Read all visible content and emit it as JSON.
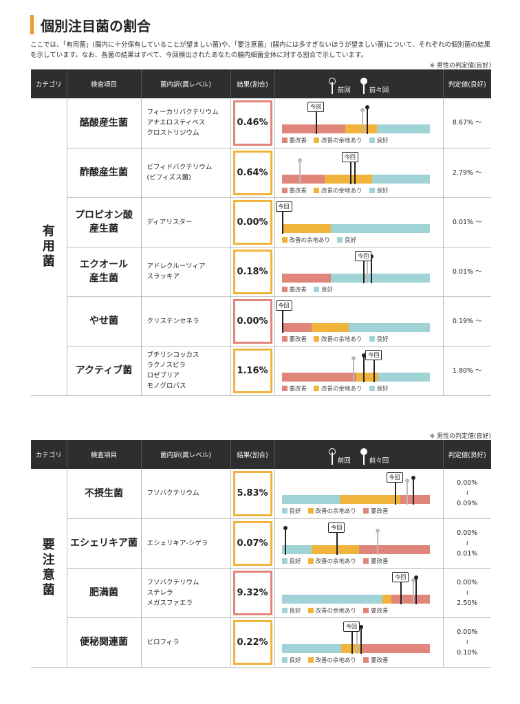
{
  "title": "個別注目菌の割合",
  "intro": "ここでは、「有用菌」(腸内に十分保有していることが望ましい菌)や、「要注意菌」(腸内には多すぎないほうが望ましい菌)について、それぞれの個別菌の結果を示しています。なお、各菌の結果はすべて、今回検出されたあなたの腸内細菌全体に対する割合で示しています。",
  "note": "※ 男性の判定値(良好)",
  "headers": {
    "category": "カテゴリ",
    "item": "検査項目",
    "bacteria": "菌内訳(属レベル)",
    "result": "結果(割合)",
    "prev": "前回",
    "prev2": "前々回",
    "judgment": "判定値(良好)"
  },
  "colors": {
    "red": "#e0857a",
    "yellow": "#f0b43c",
    "blue": "#9fd3d6"
  },
  "legend_labels": {
    "red": "要改善",
    "yellow": "改善の余地あり",
    "blue": "良好"
  },
  "tag_label": "今回",
  "sections": [
    {
      "category": "有用菌",
      "rows": [
        {
          "item": "酪酸産生菌",
          "bacteria": [
            "フィーカリバクテリウム",
            "アナエロスティペス",
            "クロストリジウム"
          ],
          "result": "0.46%",
          "result_status": "red",
          "judgment": [
            "8.67% 〜"
          ],
          "segments": [
            [
              "red",
              0.43
            ],
            [
              "yellow",
              0.21
            ],
            [
              "blue",
              0.36
            ]
          ],
          "current": 0.23,
          "prev": 0.54,
          "prev2": 0.57,
          "legend": [
            "red",
            "yellow",
            "blue"
          ]
        },
        {
          "item": "酢酸産生菌",
          "bacteria": [
            "ビフィドバクテリウム",
            "(ビフィズス菌)"
          ],
          "result": "0.64%",
          "result_status": "yellow",
          "judgment": [
            "2.79% 〜"
          ],
          "segments": [
            [
              "red",
              0.29
            ],
            [
              "yellow",
              0.32
            ],
            [
              "blue",
              0.39
            ]
          ],
          "current": 0.46,
          "prev": 0.12,
          "prev2": 0.49,
          "legend": [
            "red",
            "yellow",
            "blue"
          ]
        },
        {
          "item": "プロピオン酸産生菌",
          "item_lines": [
            "プロピオン酸",
            "産生菌"
          ],
          "bacteria": [
            "ディアリスター"
          ],
          "result": "0.00%",
          "result_status": "yellow",
          "judgment": [
            "0.01% 〜"
          ],
          "segments": [
            [
              "yellow",
              0.33
            ],
            [
              "blue",
              0.67
            ]
          ],
          "current": 0.0,
          "prev": 0.0,
          "prev2": 0.0,
          "legend": [
            "yellow",
            "blue"
          ]
        },
        {
          "item": "エクオール産生菌",
          "item_lines": [
            "エクオール",
            "産生菌"
          ],
          "bacteria": [
            "アドレクルーツィア",
            "スラッキア"
          ],
          "result": "0.18%",
          "result_status": "yellow",
          "judgment": [
            "0.01% 〜"
          ],
          "segments": [
            [
              "red",
              0.33
            ],
            [
              "blue",
              0.67
            ]
          ],
          "current": 0.55,
          "prev": 0.57,
          "prev2": 0.6,
          "legend": [
            "red",
            "blue"
          ]
        },
        {
          "item": "やせ菌",
          "bacteria": [
            "クリステンセネラ"
          ],
          "result": "0.00%",
          "result_status": "red",
          "judgment": [
            "0.19% 〜"
          ],
          "segments": [
            [
              "red",
              0.2
            ],
            [
              "yellow",
              0.25
            ],
            [
              "blue",
              0.55
            ]
          ],
          "current": 0.0,
          "prev": 0.0,
          "prev2": 0.0,
          "legend": [
            "red",
            "yellow",
            "blue"
          ]
        },
        {
          "item": "アクティブ菌",
          "bacteria": [
            "ブチリシコッカス",
            "ラクノスピラ",
            "ロゼブリア",
            "モノグロバス"
          ],
          "result": "1.16%",
          "result_status": "yellow",
          "judgment": [
            "1.80% 〜"
          ],
          "segments": [
            [
              "red",
              0.5
            ],
            [
              "yellow",
              0.15
            ],
            [
              "blue",
              0.35
            ]
          ],
          "current": 0.62,
          "prev": 0.48,
          "prev2": 0.55,
          "legend": [
            "red",
            "yellow",
            "blue"
          ]
        }
      ]
    },
    {
      "category": "要注意菌",
      "rows": [
        {
          "item": "不摂生菌",
          "bacteria": [
            "フソバクテリウム"
          ],
          "result": "5.83%",
          "result_status": "yellow",
          "judgment": [
            "0.00%",
            "≀",
            "0.09%"
          ],
          "segments": [
            [
              "blue",
              0.39
            ],
            [
              "yellow",
              0.41
            ],
            [
              "red",
              0.2
            ]
          ],
          "current": 0.76,
          "prev": 0.84,
          "prev2": 0.88,
          "legend": [
            "blue",
            "yellow",
            "red"
          ]
        },
        {
          "item": "エシェリキア菌",
          "bacteria": [
            "エシェリキア-シゲラ"
          ],
          "result": "0.07%",
          "result_status": "yellow",
          "judgment": [
            "0.00%",
            "≀",
            "0.01%"
          ],
          "segments": [
            [
              "blue",
              0.2
            ],
            [
              "yellow",
              0.32
            ],
            [
              "red",
              0.48
            ]
          ],
          "current": 0.37,
          "prev": 0.64,
          "prev2": 0.02,
          "legend": [
            "blue",
            "yellow",
            "red"
          ]
        },
        {
          "item": "肥満菌",
          "bacteria": [
            "フソバクテリウム",
            "ステレラ",
            "メガスファエラ"
          ],
          "result": "9.32%",
          "result_status": "red",
          "judgment": [
            "0.00%",
            "≀",
            "2.50%"
          ],
          "segments": [
            [
              "blue",
              0.68
            ],
            [
              "yellow",
              0.06
            ],
            [
              "red",
              0.26
            ]
          ],
          "current": 0.8,
          "prev": 0.88,
          "prev2": 0.9,
          "legend": [
            "blue",
            "yellow",
            "red"
          ]
        },
        {
          "item": "便秘関連菌",
          "bacteria": [
            "ビロフィラ"
          ],
          "result": "0.22%",
          "result_status": "yellow",
          "judgment": [
            "0.00%",
            "≀",
            "0.10%"
          ],
          "segments": [
            [
              "blue",
              0.4
            ],
            [
              "yellow",
              0.14
            ],
            [
              "red",
              0.46
            ]
          ],
          "current": 0.47,
          "prev": 0.5,
          "prev2": 0.53,
          "legend": [
            "blue",
            "yellow",
            "red"
          ]
        }
      ]
    }
  ]
}
